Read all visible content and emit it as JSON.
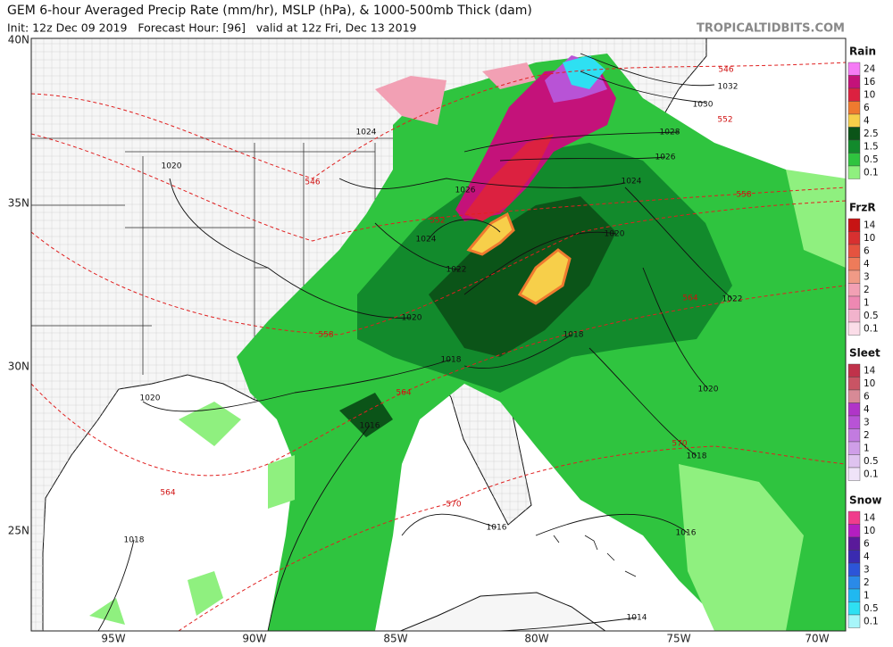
{
  "header": {
    "title": "GEM 6-hour Averaged Precip Rate (mm/hr), MSLP (hPa), & 1000-500mb Thick (dam)",
    "subtitle": "Init: 12z Dec 09 2019   Forecast Hour: [96]   valid at 12z Fri, Dec 13 2019",
    "site": "TROPICALTIDBITS.COM"
  },
  "map": {
    "lat_labels": [
      "40N",
      "35N",
      "30N",
      "25N"
    ],
    "lon_labels": [
      "95W",
      "90W",
      "85W",
      "80W",
      "75W",
      "70W"
    ],
    "isobar_labels": [
      "1032",
      "1030",
      "1028",
      "1026",
      "1024",
      "1024",
      "1026",
      "1024",
      "1022",
      "1020",
      "1020",
      "1018",
      "1018",
      "1016",
      "1016",
      "1016",
      "1018",
      "1018",
      "1020",
      "1020",
      "1022",
      "1020",
      "1014"
    ],
    "thickness_labels": [
      "546",
      "552",
      "558",
      "564",
      "570",
      "546",
      "552",
      "558",
      "564",
      "564",
      "570"
    ]
  },
  "legend": [
    {
      "title": "Rain",
      "levels": [
        "24",
        "16",
        "10",
        "6",
        "4",
        "2.5",
        "1.5",
        "0.5",
        "0.1"
      ],
      "colors": [
        "#f57bf5",
        "#c4127a",
        "#dc2140",
        "#ef7a2f",
        "#f7cf4a",
        "#0b5418",
        "#128a2c",
        "#2fc43f",
        "#8ff07f"
      ]
    },
    {
      "title": "FrzR",
      "levels": [
        "14",
        "10",
        "6",
        "4",
        "3",
        "2",
        "1",
        "0.5",
        "0.1"
      ],
      "colors": [
        "#c71414",
        "#d83030",
        "#e5533f",
        "#ee7b5a",
        "#f09a86",
        "#f2a0b4",
        "#ee88b2",
        "#f2b3cc",
        "#fbdde8"
      ]
    },
    {
      "title": "Sleet",
      "levels": [
        "14",
        "10",
        "6",
        "4",
        "3",
        "2",
        "1",
        "0.5",
        "0.1"
      ],
      "colors": [
        "#c0324a",
        "#c95464",
        "#d78a96",
        "#b035c8",
        "#b853d6",
        "#c27be0",
        "#cf9ee8",
        "#dfc3f0",
        "#efe3f8"
      ]
    },
    {
      "title": "Snow",
      "levels": [
        "14",
        "10",
        "6",
        "4",
        "3",
        "2",
        "1",
        "0.5",
        "0.1"
      ],
      "colors": [
        "#f03c8c",
        "#b41ec0",
        "#5a1a9a",
        "#3a2bb0",
        "#2c55d8",
        "#2a8ae8",
        "#20b8f0",
        "#2ee0f2",
        "#a8f6fa"
      ]
    }
  ]
}
